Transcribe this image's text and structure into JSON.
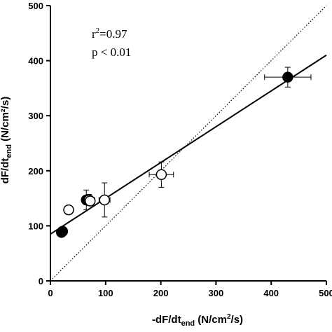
{
  "chart_data": {
    "type": "scatter",
    "xlabel": {
      "main": "-dF/dt",
      "sub": "end",
      "units_pre": " (N/cm",
      "units_sup": "2",
      "units_post": "/s)"
    },
    "ylabel": {
      "main": "dF/dt",
      "sub": "end",
      "units": " (N/cm²/s)"
    },
    "xlim": [
      0,
      500
    ],
    "ylim": [
      0,
      500
    ],
    "x_ticks": [
      0,
      100,
      200,
      300,
      400,
      500
    ],
    "y_ticks": [
      0,
      100,
      200,
      300,
      400,
      500
    ],
    "x_tick_labels": [
      "0",
      "100",
      "200",
      "300",
      "400",
      "500"
    ],
    "y_tick_labels": [
      "0",
      "100",
      "200",
      "300",
      "400",
      "500"
    ],
    "grid": false,
    "annotations": {
      "r2_prefix": "r",
      "r2_sup": "2",
      "r2_value": "=0.97",
      "p_value": "p < 0.01"
    },
    "points": [
      {
        "x": 20,
        "y": 88,
        "filled": true,
        "xerr": 3,
        "yerr": 5
      },
      {
        "x": 22,
        "y": 90,
        "filled": true,
        "xerr": 3,
        "yerr": 5
      },
      {
        "x": 33,
        "y": 129,
        "filled": false,
        "xerr": 4,
        "yerr": 5
      },
      {
        "x": 65,
        "y": 147,
        "filled": true,
        "xerr": 6,
        "yerr": 18
      },
      {
        "x": 70,
        "y": 147,
        "filled": false,
        "xerr": 10,
        "yerr": 10
      },
      {
        "x": 72,
        "y": 145,
        "filled": false,
        "xerr": 8,
        "yerr": 8
      },
      {
        "x": 98,
        "y": 147,
        "filled": false,
        "xerr": 10,
        "yerr": 31
      },
      {
        "x": 201,
        "y": 193,
        "filled": false,
        "xerr": 22,
        "yerr": 23
      },
      {
        "x": 430,
        "y": 370,
        "filled": true,
        "xerr": 42,
        "yerr": 18
      }
    ],
    "regression_line": {
      "x": [
        0,
        500
      ],
      "y": [
        85,
        410
      ]
    },
    "identity_line": {
      "x": [
        0,
        500
      ],
      "y": [
        0,
        500
      ]
    }
  }
}
